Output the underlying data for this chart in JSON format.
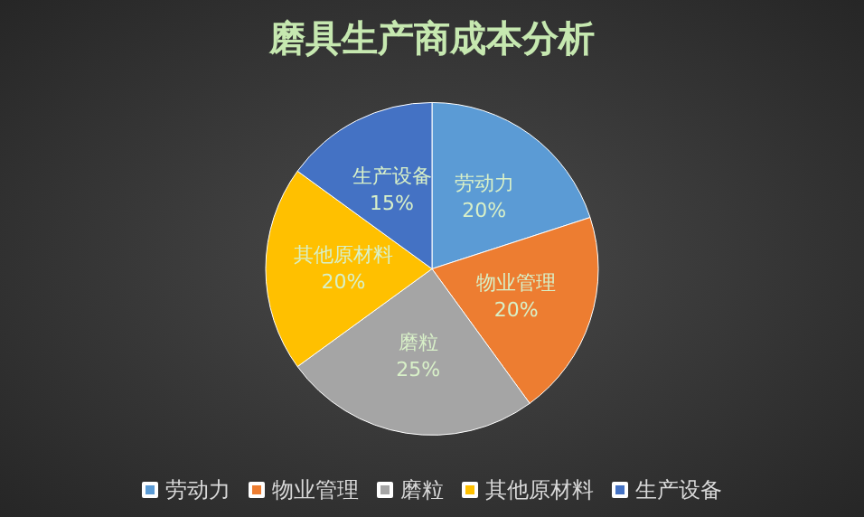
{
  "chart_data": {
    "type": "pie",
    "title": "磨具生产商成本分析",
    "categories": [
      "劳动力",
      "物业管理",
      "磨粒",
      "其他原材料",
      "生产设备"
    ],
    "values": [
      20,
      20,
      25,
      20,
      15
    ],
    "value_labels": [
      "20%",
      "20%",
      "25%",
      "20%",
      "15%"
    ],
    "colors": [
      "#5b9bd5",
      "#ed7d31",
      "#a5a5a5",
      "#ffc000",
      "#4472c4"
    ],
    "legend": "bottom"
  }
}
